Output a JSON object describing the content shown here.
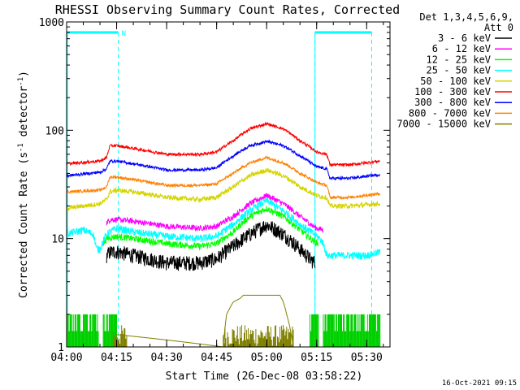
{
  "chart_data": {
    "type": "line",
    "title": "RHESSI Observing Summary Count Rates, Corrected",
    "xlabel": "Start Time (26-Dec-08 03:58:22)",
    "ylabel_main": "Corrected Count Rate (s",
    "ylabel_sup1": "-1",
    "ylabel_mid": " detector",
    "ylabel_sup2": "-1",
    "ylabel_end": ")",
    "yscale": "log",
    "ylim": [
      1,
      1000
    ],
    "xlim_minutes": [
      0,
      97
    ],
    "xticks": [
      {
        "value": 0,
        "label": "04:00"
      },
      {
        "value": 15,
        "label": "04:15"
      },
      {
        "value": 30,
        "label": "04:30"
      },
      {
        "value": 45,
        "label": "04:45"
      },
      {
        "value": 60,
        "label": "05:00"
      },
      {
        "value": 75,
        "label": "05:15"
      },
      {
        "value": 90,
        "label": "05:30"
      }
    ],
    "yticks": [
      {
        "value": 1,
        "label": "1"
      },
      {
        "value": 10,
        "label": "10"
      },
      {
        "value": 100,
        "label": "100"
      },
      {
        "value": 1000,
        "label": "1000"
      }
    ],
    "legend": {
      "placement": "right",
      "header": [
        "Det 1,3,4,5,6,9,",
        "Att 0"
      ],
      "entries": [
        {
          "label": "3 - 6 keV",
          "color": "#000000"
        },
        {
          "label": "6 - 12 keV",
          "color": "#ff00ff"
        },
        {
          "label": "12 - 25 keV",
          "color": "#00ff00"
        },
        {
          "label": "25 - 50 keV",
          "color": "#00ffff"
        },
        {
          "label": "50 - 100 keV",
          "color": "#d4d400"
        },
        {
          "label": "100 - 300 keV",
          "color": "#ff0000"
        },
        {
          "label": "300 - 800 keV",
          "color": "#0000ff"
        },
        {
          "label": "800 - 7000 keV",
          "color": "#ff8000"
        },
        {
          "label": "7000 - 15000 keV",
          "color": "#808000"
        }
      ]
    },
    "annotations": {
      "night_marker": "N",
      "night_bars": [
        [
          0,
          15.5
        ],
        [
          74.5,
          91.5
        ]
      ],
      "night_level": 800,
      "dashed_lines": [
        15.5,
        74.5,
        91.5
      ],
      "color": "#00ffff"
    },
    "series": [
      {
        "name": "3 - 6 keV",
        "color": "#000000",
        "noise": 0.16,
        "x": [
          12,
          13,
          15,
          20,
          30,
          40,
          45,
          50,
          55,
          60,
          65,
          70,
          73,
          74.5
        ],
        "y": [
          7,
          7.5,
          7.6,
          7,
          6,
          6,
          6.5,
          8.5,
          11,
          13.5,
          11,
          8,
          6.5,
          6
        ]
      },
      {
        "name": "6 - 12 keV",
        "color": "#ff00ff",
        "noise": 0.06,
        "x": [
          12,
          13,
          15,
          20,
          30,
          40,
          45,
          50,
          55,
          60,
          65,
          70,
          74,
          75,
          77
        ],
        "y": [
          14,
          15,
          15,
          14.5,
          13,
          12.5,
          13,
          16,
          21,
          25,
          21,
          16,
          13,
          12.5,
          12
        ]
      },
      {
        "name": "12 - 25 keV",
        "color": "#00ff00",
        "noise": 0.07,
        "x": [
          11,
          12,
          15,
          20,
          30,
          40,
          45,
          50,
          55,
          60,
          65,
          70,
          74,
          75.5
        ],
        "y": [
          9,
          10,
          10.5,
          10,
          9,
          8.5,
          9,
          11.5,
          16,
          19,
          16,
          12,
          9.5,
          9
        ]
      },
      {
        "name": "25 - 50 keV",
        "color": "#00ffff",
        "noise": 0.08,
        "x": [
          0,
          5,
          8,
          9,
          10,
          12,
          15,
          20,
          30,
          40,
          45,
          50,
          55,
          60,
          65,
          70,
          75,
          76,
          77,
          78,
          85,
          90,
          94
        ],
        "y": [
          11,
          12,
          11,
          8,
          8,
          11,
          12.5,
          11.5,
          10.5,
          10,
          10.5,
          13.5,
          18,
          22.5,
          18,
          13.5,
          10.5,
          10,
          9,
          7,
          7,
          7,
          7.5
        ]
      },
      {
        "name": "50 - 100 keV",
        "color": "#d4d400",
        "noise": 0.05,
        "x": [
          0,
          10,
          12,
          13,
          15,
          20,
          30,
          40,
          45,
          50,
          55,
          60,
          65,
          70,
          75,
          78,
          79,
          85,
          94
        ],
        "y": [
          19,
          21,
          23,
          27,
          28,
          27,
          24,
          23,
          24,
          30,
          38,
          43,
          38,
          30,
          25,
          24,
          20,
          20,
          21
        ]
      },
      {
        "name": "100 - 300 keV",
        "color": "#ff0000",
        "noise": 0.03,
        "x": [
          0,
          10,
          12,
          13,
          15,
          20,
          30,
          40,
          45,
          50,
          55,
          60,
          65,
          70,
          75,
          78,
          79,
          85,
          94
        ],
        "y": [
          49,
          52,
          56,
          72,
          72,
          68,
          60,
          60,
          63,
          80,
          103,
          115,
          103,
          80,
          63,
          60,
          48,
          48,
          52
        ]
      },
      {
        "name": "300 - 800 keV",
        "color": "#0000ff",
        "noise": 0.03,
        "x": [
          0,
          10,
          12,
          13,
          15,
          20,
          30,
          40,
          45,
          50,
          55,
          60,
          65,
          70,
          75,
          78,
          79,
          85,
          94
        ],
        "y": [
          38,
          41,
          44,
          52,
          52,
          49,
          43,
          43,
          45,
          58,
          72,
          79,
          72,
          58,
          46,
          44,
          36,
          36,
          39
        ]
      },
      {
        "name": "800 - 7000 keV",
        "color": "#ff8000",
        "noise": 0.03,
        "x": [
          0,
          10,
          12,
          13,
          15,
          20,
          30,
          40,
          45,
          50,
          55,
          60,
          65,
          70,
          75,
          78,
          79,
          85,
          94
        ],
        "y": [
          27,
          28,
          30,
          37,
          37,
          35,
          31,
          31,
          32,
          40,
          50,
          56,
          50,
          40,
          33,
          31,
          24,
          24,
          26
        ]
      },
      {
        "name": "7000 - 15000 keV",
        "color": "#808000",
        "noise": 0.0,
        "x": [
          14,
          15,
          47,
          48,
          50,
          52,
          53,
          64,
          65,
          66,
          67,
          68
        ],
        "y": [
          1,
          1.3,
          1,
          2,
          2.6,
          2.8,
          3,
          3,
          2.6,
          2,
          1.5,
          1
        ]
      }
    ],
    "low_flags": {
      "green": [
        [
          0,
          9.5
        ],
        [
          11,
          15
        ],
        [
          73,
          75.5
        ],
        [
          77,
          94
        ]
      ],
      "olive": [
        [
          14,
          18
        ],
        [
          47,
          68
        ]
      ]
    }
  },
  "footer": {
    "date": "16-Oct-2021 09:15"
  }
}
